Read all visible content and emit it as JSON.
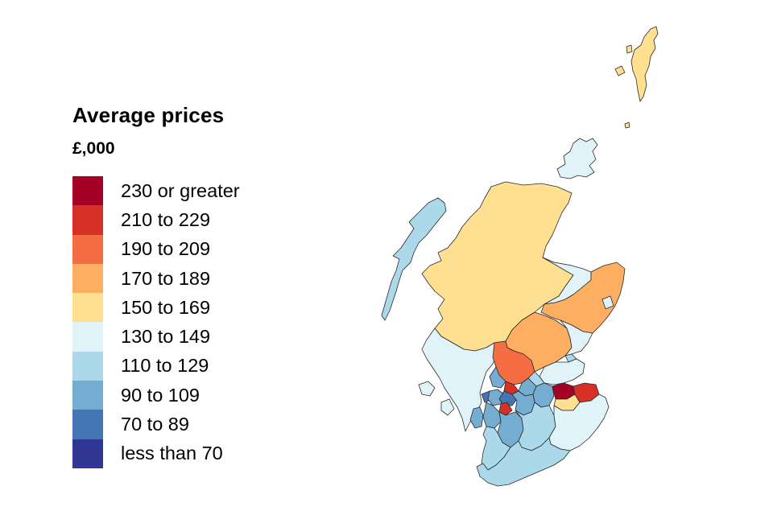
{
  "legend": {
    "title": "Average prices",
    "unit": "£,000",
    "bands": [
      {
        "label": "230 or greater",
        "color": "#a50026"
      },
      {
        "label": "210 to 229",
        "color": "#d73027"
      },
      {
        "label": "190 to 209",
        "color": "#f46d43"
      },
      {
        "label": "170 to 189",
        "color": "#fdae61"
      },
      {
        "label": "150 to 169",
        "color": "#fee090"
      },
      {
        "label": "130 to 149",
        "color": "#e0f3f8"
      },
      {
        "label": "110 to 129",
        "color": "#abd9e9"
      },
      {
        "label": "90 to 109",
        "color": "#74add1"
      },
      {
        "label": "70 to 89",
        "color": "#4575b4"
      },
      {
        "label": "less than 70",
        "color": "#313695"
      }
    ]
  },
  "regions": [
    {
      "name": "shetland",
      "band": 4
    },
    {
      "name": "orkney",
      "band": 5
    },
    {
      "name": "na-h-eileanan-siar",
      "band": 6
    },
    {
      "name": "highland",
      "band": 4
    },
    {
      "name": "moray",
      "band": 5
    },
    {
      "name": "aberdeenshire",
      "band": 3
    },
    {
      "name": "aberdeen-city",
      "band": 5
    },
    {
      "name": "perth-and-kinross",
      "band": 3
    },
    {
      "name": "angus",
      "band": 5
    },
    {
      "name": "dundee-city",
      "band": 6
    },
    {
      "name": "fife",
      "band": 5
    },
    {
      "name": "argyll-and-bute",
      "band": 5
    },
    {
      "name": "stirling",
      "band": 2
    },
    {
      "name": "clackmannanshire",
      "band": 6
    },
    {
      "name": "falkirk",
      "band": 7
    },
    {
      "name": "west-lothian",
      "band": 7
    },
    {
      "name": "city-of-edinburgh",
      "band": 0
    },
    {
      "name": "midlothian",
      "band": 4
    },
    {
      "name": "east-lothian",
      "band": 1
    },
    {
      "name": "west-dunbartonshire",
      "band": 7
    },
    {
      "name": "east-dunbartonshire",
      "band": 1
    },
    {
      "name": "glasgow-city",
      "band": 8
    },
    {
      "name": "east-renfrewshire",
      "band": 1
    },
    {
      "name": "inverclyde",
      "band": 8
    },
    {
      "name": "renfrewshire",
      "band": 7
    },
    {
      "name": "north-lanarkshire",
      "band": 7
    },
    {
      "name": "south-lanarkshire",
      "band": 6
    },
    {
      "name": "north-ayrshire",
      "band": 7
    },
    {
      "name": "east-ayrshire",
      "band": 7
    },
    {
      "name": "south-ayrshire",
      "band": 6
    },
    {
      "name": "scottish-borders",
      "band": 5
    },
    {
      "name": "dumfries-and-galloway",
      "band": 6
    }
  ]
}
